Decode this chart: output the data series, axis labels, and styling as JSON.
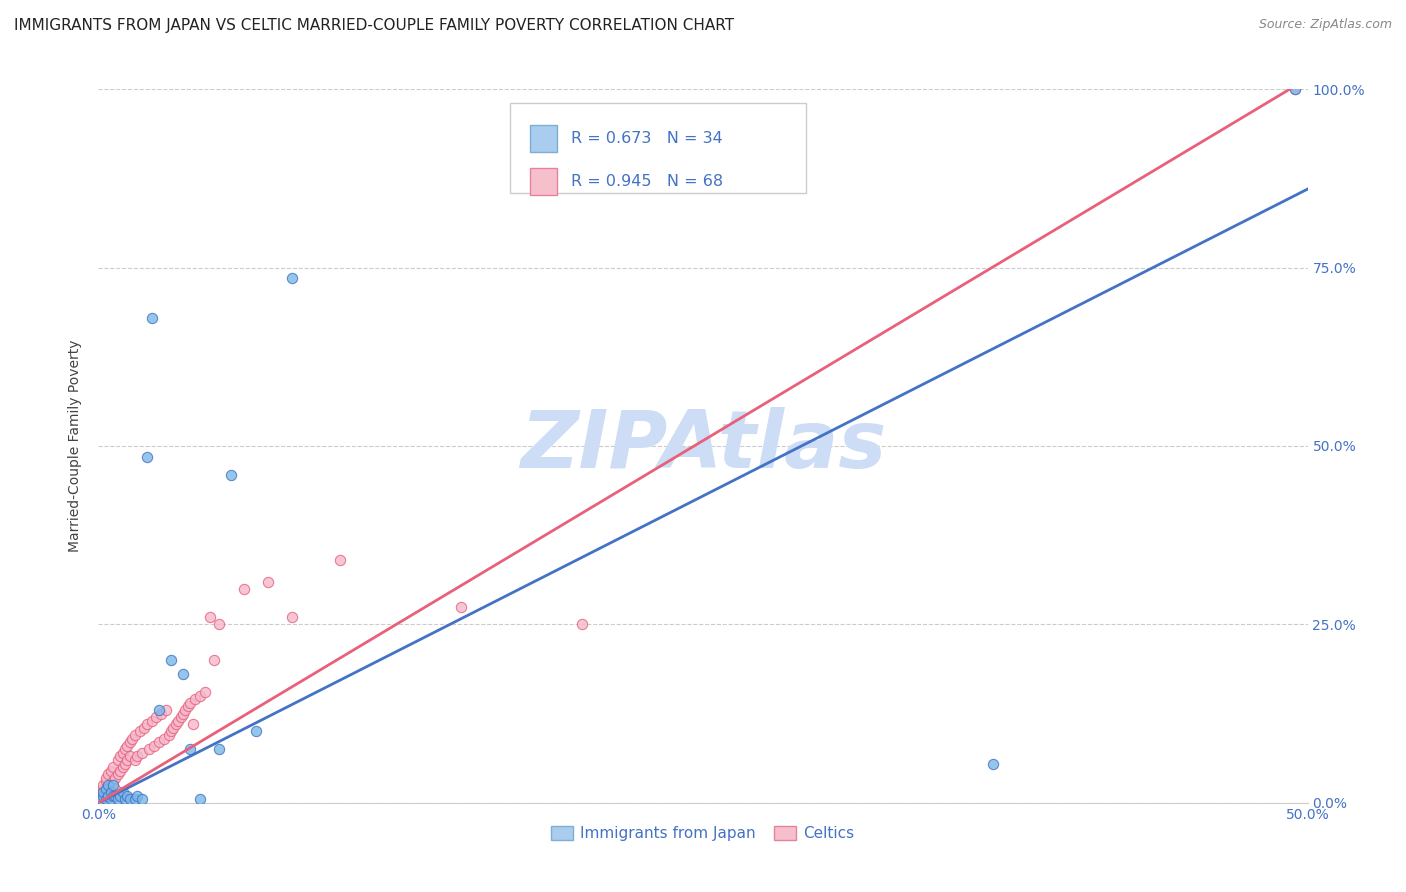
{
  "title": "IMMIGRANTS FROM JAPAN VS CELTIC MARRIED-COUPLE FAMILY POVERTY CORRELATION CHART",
  "source": "Source: ZipAtlas.com",
  "ylabel": "Married-Couple Family Poverty",
  "watermark": "ZIPAtlas",
  "xmin": 0.0,
  "xmax": 0.5,
  "ymin": 0.0,
  "ymax": 1.0,
  "xticks": [
    0.0,
    0.1,
    0.2,
    0.3,
    0.4,
    0.5
  ],
  "xtick_labels": [
    "0.0%",
    "",
    "",
    "",
    "",
    "50.0%"
  ],
  "ytick_labels_right": [
    "0.0%",
    "25.0%",
    "50.0%",
    "75.0%",
    "100.0%"
  ],
  "yticks": [
    0.0,
    0.25,
    0.5,
    0.75,
    1.0
  ],
  "blue_scatter_x": [
    0.001,
    0.002,
    0.002,
    0.003,
    0.003,
    0.004,
    0.004,
    0.005,
    0.005,
    0.006,
    0.006,
    0.007,
    0.008,
    0.009,
    0.01,
    0.011,
    0.012,
    0.013,
    0.015,
    0.016,
    0.018,
    0.02,
    0.022,
    0.025,
    0.03,
    0.035,
    0.038,
    0.042,
    0.05,
    0.055,
    0.065,
    0.08,
    0.37,
    0.495
  ],
  "blue_scatter_y": [
    0.005,
    0.01,
    0.015,
    0.005,
    0.02,
    0.01,
    0.025,
    0.005,
    0.015,
    0.01,
    0.025,
    0.01,
    0.005,
    0.01,
    0.015,
    0.005,
    0.01,
    0.005,
    0.005,
    0.01,
    0.005,
    0.485,
    0.68,
    0.13,
    0.2,
    0.18,
    0.075,
    0.005,
    0.075,
    0.46,
    0.1,
    0.735,
    0.055,
    1.0
  ],
  "pink_scatter_x": [
    0.001,
    0.001,
    0.002,
    0.002,
    0.002,
    0.003,
    0.003,
    0.003,
    0.004,
    0.004,
    0.005,
    0.005,
    0.006,
    0.006,
    0.007,
    0.007,
    0.008,
    0.008,
    0.009,
    0.009,
    0.01,
    0.01,
    0.011,
    0.011,
    0.012,
    0.012,
    0.013,
    0.013,
    0.014,
    0.015,
    0.015,
    0.016,
    0.017,
    0.018,
    0.019,
    0.02,
    0.021,
    0.022,
    0.023,
    0.024,
    0.025,
    0.026,
    0.027,
    0.028,
    0.029,
    0.03,
    0.031,
    0.032,
    0.033,
    0.034,
    0.035,
    0.036,
    0.037,
    0.038,
    0.039,
    0.04,
    0.042,
    0.044,
    0.046,
    0.048,
    0.05,
    0.06,
    0.07,
    0.08,
    0.1,
    0.15,
    0.2,
    0.495
  ],
  "pink_scatter_y": [
    0.005,
    0.01,
    0.015,
    0.02,
    0.025,
    0.01,
    0.03,
    0.035,
    0.02,
    0.04,
    0.025,
    0.045,
    0.03,
    0.05,
    0.035,
    0.02,
    0.04,
    0.06,
    0.045,
    0.065,
    0.05,
    0.07,
    0.055,
    0.075,
    0.06,
    0.08,
    0.065,
    0.085,
    0.09,
    0.06,
    0.095,
    0.065,
    0.1,
    0.07,
    0.105,
    0.11,
    0.075,
    0.115,
    0.08,
    0.12,
    0.085,
    0.125,
    0.09,
    0.13,
    0.095,
    0.1,
    0.105,
    0.11,
    0.115,
    0.12,
    0.125,
    0.13,
    0.135,
    0.14,
    0.11,
    0.145,
    0.15,
    0.155,
    0.26,
    0.2,
    0.25,
    0.3,
    0.31,
    0.26,
    0.34,
    0.275,
    0.25,
    1.0
  ],
  "blue_line_slope": 1.72,
  "blue_line_intercept": 0.0,
  "pink_line_slope": 2.03,
  "pink_line_intercept": 0.0,
  "blue_color": "#7ab8e8",
  "blue_edge": "#4472c4",
  "blue_line_color": "#4472c4",
  "pink_color": "#f5b8cc",
  "pink_edge": "#e8607a",
  "pink_line_color": "#e8607a",
  "background_color": "#ffffff",
  "grid_color": "#cccccc",
  "title_fontsize": 11,
  "axis_label_fontsize": 10,
  "tick_fontsize": 10,
  "watermark_color": "#ccddf5",
  "watermark_fontsize": 58
}
